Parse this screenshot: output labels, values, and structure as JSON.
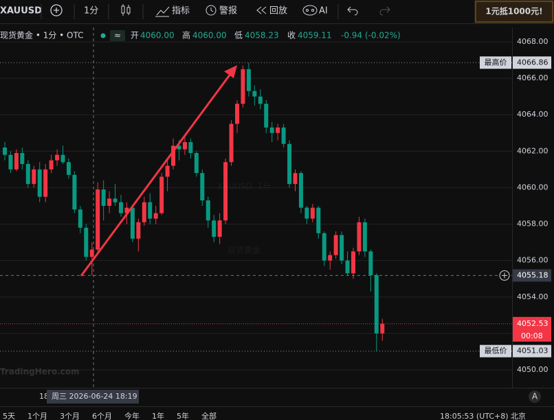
{
  "ui": {
    "toolbar": {
      "symbol": "XAUUSD",
      "interval": "1分",
      "indicators": "指标",
      "alerts": "警报",
      "replay": "回放",
      "ai": "AI"
    },
    "banner": "1元抵1000元!",
    "legend": {
      "title": "现货黄金 • 1分 • OTC",
      "open_label": "开",
      "open": "4060.00",
      "high_label": "高",
      "high": "4060.00",
      "low_label": "低",
      "low": "4058.23",
      "close_label": "收",
      "close": "4059.11",
      "change": "-0.94 (-0.02%)"
    },
    "watermark": {
      "line1": "XAUUSD, 1分",
      "line2": "现货黄金",
      "brand": "TradingHero.com"
    },
    "time_axis": {
      "tick": "18",
      "crosshair": "周三 2026-06-24 18:19"
    },
    "auto_button": "A",
    "ranges": [
      "5天",
      "1个月",
      "3个月",
      "6个月",
      "今年",
      "1年",
      "5年",
      "全部"
    ],
    "clock": "18:05:53 (UTC+8) 北京"
  },
  "chart_data": {
    "type": "candlestick",
    "up_color": "#f23645",
    "down_color": "#089981",
    "ylim": [
      4049.02,
      4068.79
    ],
    "yticks": [
      {
        "value": 4050,
        "label": "4050.00"
      },
      {
        "value": 4052,
        "label": "4052.00"
      },
      {
        "value": 4054,
        "label": "4054.00"
      },
      {
        "value": 4056,
        "label": "4056.00"
      },
      {
        "value": 4058,
        "label": "4058.00"
      },
      {
        "value": 4060,
        "label": "4060.00"
      },
      {
        "value": 4062,
        "label": "4062.00"
      },
      {
        "value": 4064,
        "label": "4064.00"
      },
      {
        "value": 4066,
        "label": "4066.00"
      },
      {
        "value": 4068,
        "label": "4068.00"
      }
    ],
    "grid": true,
    "open": [
      4062.2,
      4061.8,
      4061.0,
      4061.9,
      4061.3,
      4060.2,
      4061.0,
      4059.5,
      4061.0,
      4061.5,
      4061.8,
      4061.4,
      4060.7,
      4058.8,
      4057.8,
      4056.2,
      4056.6,
      4059.9,
      4059.0,
      4059.4,
      4059.2,
      4058.6,
      4058.9,
      4057.2,
      4058.1,
      4059.2,
      4058.3,
      4058.6,
      4060.6,
      4061.2,
      4062.3,
      4062.1,
      4062.5,
      4061.9,
      4060.8,
      4059.3,
      4058.2,
      4057.3,
      4058.2,
      4061.4,
      4063.5,
      4064.6,
      4066.5,
      4065.3,
      4065.0,
      4064.6,
      4063.3,
      4063.0,
      4063.3,
      4062.4,
      4060.2,
      4060.8,
      4058.9,
      4058.3,
      4058.9,
      4057.5,
      4056.0,
      4056.3,
      4057.4,
      4056.0,
      4055.3,
      4056.5,
      4058.1,
      4056.5,
      4055.2,
      4052.0
    ],
    "high": [
      4062.5,
      4062.0,
      4062.1,
      4062.2,
      4061.5,
      4061.2,
      4061.4,
      4061.3,
      4061.8,
      4062.1,
      4062.3,
      4061.6,
      4060.9,
      4059.0,
      4058.0,
      4057.0,
      4060.3,
      4060.4,
      4059.8,
      4060.2,
      4059.6,
      4059.2,
      4059.0,
      4058.3,
      4059.5,
      4059.7,
      4059.0,
      4060.8,
      4061.5,
      4062.7,
      4062.6,
      4062.9,
      4062.7,
      4062.0,
      4061.0,
      4059.5,
      4058.5,
      4058.6,
      4061.6,
      4063.7,
      4064.8,
      4066.7,
      4066.86,
      4065.6,
      4065.4,
      4064.8,
      4063.6,
      4063.5,
      4063.5,
      4062.6,
      4061.0,
      4060.9,
      4059.0,
      4059.1,
      4059.0,
      4057.6,
      4056.5,
      4057.6,
      4057.6,
      4056.5,
      4056.7,
      4058.4,
      4058.3,
      4056.6,
      4055.3,
      4052.8
    ],
    "low": [
      4061.5,
      4060.8,
      4060.9,
      4061.0,
      4060.0,
      4060.0,
      4059.2,
      4059.2,
      4060.8,
      4061.2,
      4061.3,
      4060.5,
      4058.6,
      4057.5,
      4056.0,
      4055.18,
      4056.4,
      4058.2,
      4058.6,
      4059.0,
      4058.4,
      4058.0,
      4057.0,
      4056.5,
      4057.9,
      4058.0,
      4058.0,
      4058.5,
      4059.8,
      4061.0,
      4061.5,
      4061.8,
      4061.6,
      4060.6,
      4059.0,
      4057.8,
      4057.0,
      4056.9,
      4058.0,
      4061.2,
      4063.0,
      4064.4,
      4065.0,
      4064.5,
      4064.3,
      4063.0,
      4062.5,
      4062.6,
      4062.2,
      4060.0,
      4059.8,
      4058.6,
      4058.0,
      4058.1,
      4057.2,
      4055.7,
      4055.5,
      4056.1,
      4055.8,
      4055.2,
      4055.0,
      4056.3,
      4056.2,
      4054.3,
      4051.03,
      4051.6
    ],
    "close": [
      4061.8,
      4061.0,
      4061.9,
      4061.3,
      4060.2,
      4061.0,
      4059.5,
      4061.0,
      4061.5,
      4061.8,
      4061.4,
      4060.7,
      4058.8,
      4057.8,
      4056.2,
      4056.6,
      4059.9,
      4059.0,
      4059.4,
      4059.2,
      4058.6,
      4058.9,
      4057.2,
      4058.1,
      4059.2,
      4058.3,
      4058.6,
      4060.6,
      4061.2,
      4062.3,
      4062.1,
      4062.5,
      4061.9,
      4060.8,
      4059.3,
      4058.2,
      4057.3,
      4058.2,
      4061.4,
      4063.5,
      4064.6,
      4066.5,
      4065.3,
      4065.0,
      4064.6,
      4063.3,
      4063.0,
      4063.3,
      4062.4,
      4060.2,
      4060.8,
      4058.9,
      4058.3,
      4058.9,
      4057.5,
      4056.0,
      4056.3,
      4057.4,
      4056.0,
      4055.3,
      4056.5,
      4058.1,
      4056.5,
      4055.2,
      4052.0,
      4052.53
    ],
    "markers": [
      {
        "label": "最高价",
        "value": 4066.86
      },
      {
        "label": "最低价",
        "value": 4051.03
      }
    ],
    "last_price": {
      "value": 4052.53,
      "countdown": "00:08"
    },
    "crosshair_price": 4055.18
  }
}
